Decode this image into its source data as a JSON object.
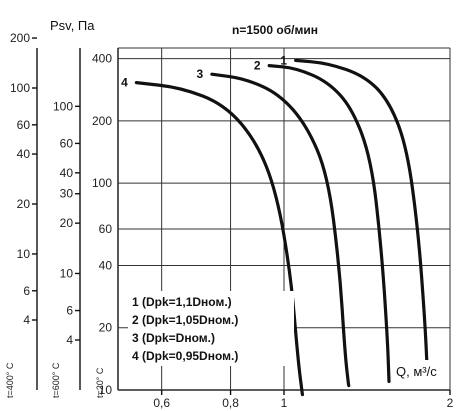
{
  "chart_data": {
    "type": "line",
    "title": "n=1500 об/мин",
    "ylabel": "Psv, Па",
    "xlabel": "Q, м³/с",
    "x_scale": "log",
    "y_scale": "log",
    "xlim": [
      0.5,
      2
    ],
    "ylim": [
      10,
      450
    ],
    "x_ticks": [
      "0,6",
      "0,8",
      "1",
      "2"
    ],
    "y_ticks": [
      "10",
      "20",
      "40",
      "60",
      "100",
      "200",
      "400"
    ],
    "grid": true,
    "legend_position": "bottom-left",
    "extra_axes": [
      {
        "name": "t=400° C",
        "ticks": [
          "4",
          "6",
          "10",
          "20",
          "40",
          "60",
          "100",
          "200"
        ]
      },
      {
        "name": "t=600° C",
        "ticks": [
          "4",
          "6",
          "10",
          "20",
          "30",
          "40",
          "60",
          "100"
        ]
      },
      {
        "name": "t=20° C"
      }
    ],
    "series": [
      {
        "name": "1 (Dpk=1,1Dном.)",
        "label": "1",
        "x": [
          1.05,
          1.2,
          1.4,
          1.55,
          1.67,
          1.75,
          1.8,
          1.82
        ],
        "y": [
          392,
          380,
          330,
          250,
          150,
          60,
          22,
          12
        ]
      },
      {
        "name": "2 (Dpk=1,05Dном.)",
        "label": "2",
        "x": [
          0.94,
          1.05,
          1.2,
          1.33,
          1.44,
          1.5,
          1.54,
          1.55
        ],
        "y": [
          370,
          360,
          310,
          230,
          130,
          50,
          18,
          11
        ]
      },
      {
        "name": "3 (Dpk=Dном.)",
        "label": "3",
        "x": [
          0.74,
          0.85,
          0.98,
          1.1,
          1.2,
          1.26,
          1.29,
          1.31
        ],
        "y": [
          336,
          320,
          270,
          190,
          110,
          40,
          15,
          10.5
        ]
      },
      {
        "name": "4 (Dpk=0,95Dном.)",
        "label": "4",
        "x": [
          0.54,
          0.65,
          0.78,
          0.89,
          0.97,
          1.03,
          1.06,
          1.08
        ],
        "y": [
          306,
          290,
          240,
          160,
          90,
          35,
          14,
          9.5
        ]
      }
    ]
  }
}
